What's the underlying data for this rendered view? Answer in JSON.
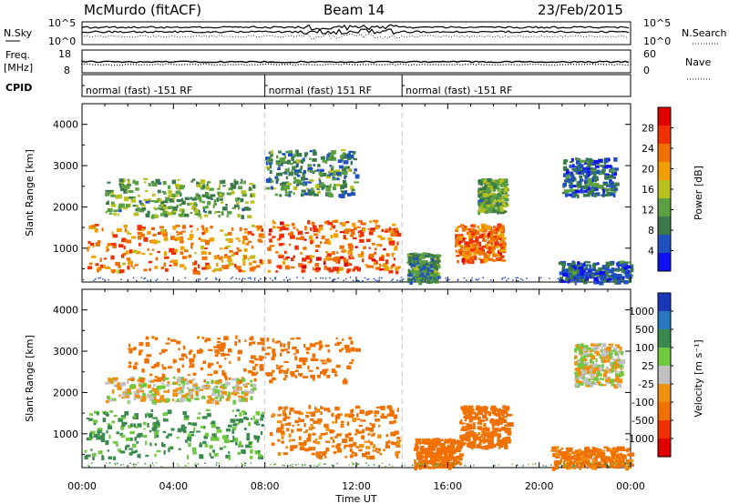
{
  "header": {
    "station": "McMurdo (fitACF)",
    "beam": "Beam 14",
    "date": "23/Feb/2015"
  },
  "strip_labels": {
    "nsky": "N.Sky",
    "nsky_ticks": [
      "10^5",
      "10^0"
    ],
    "nsearch": "N.Search",
    "nsearch_ticks": [
      "10^5",
      "10^0"
    ],
    "freq": "Freq.",
    "freq_unit": "[MHz]",
    "freq_ticks": [
      "18",
      "8"
    ],
    "nave": "Nave",
    "nave_ticks": [
      "60",
      "0"
    ],
    "cpid": "CPID",
    "cpid_segments": [
      {
        "start_hour": 0.0,
        "label": "normal (fast) -151 RF"
      },
      {
        "start_hour": 8.0,
        "label": "normal (fast) 151 RF"
      },
      {
        "start_hour": 14.0,
        "label": "normal (fast) -151 RF"
      }
    ]
  },
  "colors": {
    "power_scale": [
      "#1010f0",
      "#2050c0",
      "#3a7a4a",
      "#5aa040",
      "#b8c020",
      "#f0a000",
      "#f07000",
      "#f03000",
      "#e00000"
    ],
    "velocity_scale": [
      "#1838b8",
      "#2878c0",
      "#3a8a50",
      "#70c840",
      "#c0c0c0",
      "#f09010",
      "#f07000",
      "#f03000",
      "#e00000"
    ]
  },
  "chart_data": [
    {
      "type": "heatmap",
      "panel": "power",
      "xlabel": "",
      "ylabel": "Slant Range [km]",
      "xlim": [
        0,
        24
      ],
      "ylim": [
        180,
        4500
      ],
      "y_ticks": [
        "1000",
        "2000",
        "3000",
        "4000"
      ],
      "colorbar_label": "Power [dB]",
      "colorbar_ticks": [
        "4",
        "8",
        "12",
        "16",
        "20",
        "24",
        "28"
      ],
      "colorbar_range": [
        0,
        32
      ],
      "echo_regions": [
        {
          "x": [
            0.2,
            7.9
          ],
          "y": [
            450,
            1600
          ],
          "level": 22
        },
        {
          "x": [
            8.1,
            13.8
          ],
          "y": [
            450,
            1700
          ],
          "level": 24
        },
        {
          "x": [
            14.2,
            15.5
          ],
          "y": [
            200,
            900
          ],
          "level": 10
        },
        {
          "x": [
            16.3,
            18.4
          ],
          "y": [
            700,
            1600
          ],
          "level": 24
        },
        {
          "x": [
            17.3,
            18.5
          ],
          "y": [
            1900,
            2700
          ],
          "level": 12
        },
        {
          "x": [
            20.8,
            24.0
          ],
          "y": [
            200,
            700
          ],
          "level": 6
        },
        {
          "x": [
            21.0,
            23.3
          ],
          "y": [
            2300,
            3200
          ],
          "level": 7
        },
        {
          "x": [
            1.0,
            7.5
          ],
          "y": [
            1800,
            2700
          ],
          "level": 12
        },
        {
          "x": [
            8.0,
            12.0
          ],
          "y": [
            2300,
            3400
          ],
          "level": 10
        }
      ]
    },
    {
      "type": "heatmap",
      "panel": "velocity",
      "xlabel": "Time UT",
      "ylabel": "Slant Range [km]",
      "xlim": [
        0,
        24
      ],
      "ylim": [
        180,
        4500
      ],
      "x_ticks": [
        "00:00",
        "04:00",
        "08:00",
        "12:00",
        "16:00",
        "20:00",
        "00:00"
      ],
      "y_ticks": [
        "1000",
        "2000",
        "3000",
        "4000"
      ],
      "colorbar_label": "Velocity [m s⁻¹]",
      "colorbar_ticks": [
        "1000",
        "500",
        "100",
        "25",
        "-25",
        "-100",
        "-500",
        "-1000"
      ],
      "echo_regions": [
        {
          "x": [
            0.1,
            7.9
          ],
          "y": [
            450,
            1600
          ],
          "velocity": 120
        },
        {
          "x": [
            8.1,
            13.8
          ],
          "y": [
            450,
            1700
          ],
          "velocity": -150
        },
        {
          "x": [
            14.5,
            16.5
          ],
          "y": [
            200,
            900
          ],
          "velocity": -200
        },
        {
          "x": [
            16.5,
            18.7
          ],
          "y": [
            700,
            1700
          ],
          "velocity": -180
        },
        {
          "x": [
            20.5,
            24.0
          ],
          "y": [
            200,
            700
          ],
          "velocity": -150
        },
        {
          "x": [
            21.5,
            23.6
          ],
          "y": [
            2200,
            3200
          ],
          "velocity": 10
        },
        {
          "x": [
            1.0,
            7.5
          ],
          "y": [
            1800,
            2400
          ],
          "velocity": -5
        },
        {
          "x": [
            2.0,
            12.0
          ],
          "y": [
            2300,
            3400
          ],
          "velocity": -200
        }
      ]
    }
  ]
}
